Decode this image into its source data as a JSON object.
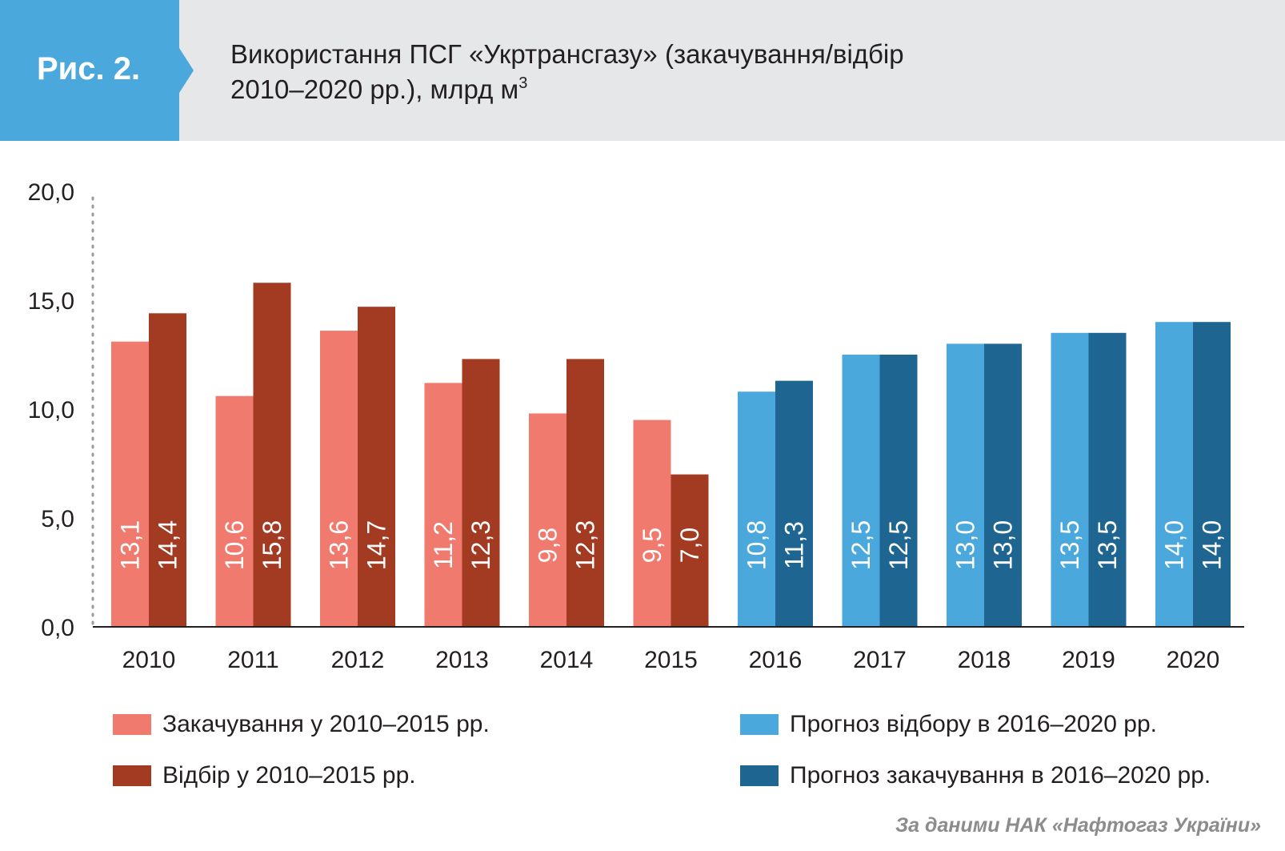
{
  "figure": {
    "label": "Рис. 2.",
    "title_line1": "Використання ПСГ «Укртрансгазу» (закачування/відбір",
    "title_line2": "2010–2020 рр.), млрд м",
    "title_sup": "3",
    "source": "За даними НАК «Нафтогаз України»"
  },
  "colors": {
    "header_bg": "#e6e7e9",
    "badge": "#4aa8dd",
    "injection_hist": "#f07a6e",
    "withdrawal_hist": "#a33a22",
    "withdrawal_forecast": "#4aa8dd",
    "injection_forecast": "#1f6592"
  },
  "chart_data": {
    "type": "bar",
    "categories": [
      "2010",
      "2011",
      "2012",
      "2013",
      "2014",
      "2015",
      "2016",
      "2017",
      "2018",
      "2019",
      "2020"
    ],
    "yticks": [
      "0,0",
      "5,0",
      "10,0",
      "15,0",
      "20,0"
    ],
    "ylim": [
      0,
      20
    ],
    "grid": false,
    "pairs": [
      {
        "left": {
          "value": 13.1,
          "label": "13,1",
          "color": "#f07a6e"
        },
        "right": {
          "value": 14.4,
          "label": "14,4",
          "color": "#a33a22"
        }
      },
      {
        "left": {
          "value": 10.6,
          "label": "10,6",
          "color": "#f07a6e"
        },
        "right": {
          "value": 15.8,
          "label": "15,8",
          "color": "#a33a22"
        }
      },
      {
        "left": {
          "value": 13.6,
          "label": "13,6",
          "color": "#f07a6e"
        },
        "right": {
          "value": 14.7,
          "label": "14,7",
          "color": "#a33a22"
        }
      },
      {
        "left": {
          "value": 11.2,
          "label": "11,2",
          "color": "#f07a6e"
        },
        "right": {
          "value": 12.3,
          "label": "12,3",
          "color": "#a33a22"
        }
      },
      {
        "left": {
          "value": 9.8,
          "label": "9,8",
          "color": "#f07a6e"
        },
        "right": {
          "value": 12.3,
          "label": "12,3",
          "color": "#a33a22"
        }
      },
      {
        "left": {
          "value": 9.5,
          "label": "9,5",
          "color": "#f07a6e"
        },
        "right": {
          "value": 7.0,
          "label": "7,0",
          "color": "#a33a22"
        }
      },
      {
        "left": {
          "value": 10.8,
          "label": "10,8",
          "color": "#4aa8dd"
        },
        "right": {
          "value": 11.3,
          "label": "11,3",
          "color": "#1f6592"
        }
      },
      {
        "left": {
          "value": 12.5,
          "label": "12,5",
          "color": "#4aa8dd"
        },
        "right": {
          "value": 12.5,
          "label": "12,5",
          "color": "#1f6592"
        }
      },
      {
        "left": {
          "value": 13.0,
          "label": "13,0",
          "color": "#4aa8dd"
        },
        "right": {
          "value": 13.0,
          "label": "13,0",
          "color": "#1f6592"
        }
      },
      {
        "left": {
          "value": 13.5,
          "label": "13,5",
          "color": "#4aa8dd"
        },
        "right": {
          "value": 13.5,
          "label": "13,5",
          "color": "#1f6592"
        }
      },
      {
        "left": {
          "value": 14.0,
          "label": "14,0",
          "color": "#4aa8dd"
        },
        "right": {
          "value": 14.0,
          "label": "14,0",
          "color": "#1f6592"
        }
      }
    ],
    "legend": [
      {
        "label": "Закачування у 2010–2015 рр.",
        "color": "#f07a6e"
      },
      {
        "label": "Відбір у 2010–2015 рр.",
        "color": "#a33a22"
      },
      {
        "label": "Прогноз відбору в 2016–2020 рр.",
        "color": "#4aa8dd"
      },
      {
        "label": "Прогноз закачування в 2016–2020 рр.",
        "color": "#1f6592"
      }
    ]
  }
}
